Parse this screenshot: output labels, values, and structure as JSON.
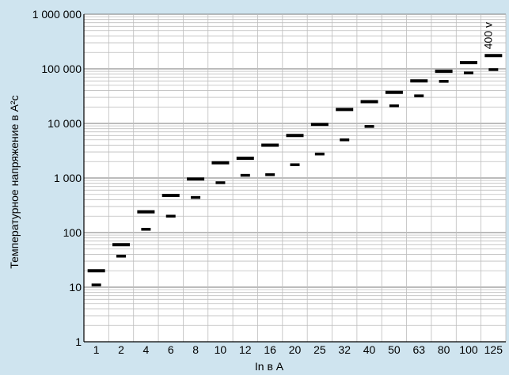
{
  "chart_data": {
    "type": "scatter",
    "title": "",
    "xlabel": "In в A",
    "ylabel": "Температурное напряжение в A²c",
    "y_scale": "log",
    "ylim": [
      1,
      1000000
    ],
    "grid": true,
    "categories": [
      "1",
      "2",
      "4",
      "6",
      "8",
      "10",
      "12",
      "16",
      "20",
      "25",
      "32",
      "40",
      "50",
      "63",
      "80",
      "100",
      "125"
    ],
    "y_tick_labels": [
      "1",
      "10",
      "100",
      "1 000",
      "10 000",
      "100 000",
      "1 000 000"
    ],
    "y_tick_values": [
      1,
      10,
      100,
      1000,
      10000,
      100000,
      1000000
    ],
    "series": [
      {
        "name": "",
        "values": [
          20,
          60,
          240,
          480,
          960,
          1900,
          2300,
          4000,
          6000,
          9600,
          18000,
          25000,
          37000,
          60000,
          90000,
          130000,
          175000
        ]
      },
      {
        "name": "",
        "values": [
          11,
          37,
          115,
          200,
          440,
          820,
          1120,
          1150,
          1750,
          2750,
          5000,
          8800,
          21000,
          32000,
          59000,
          84000,
          97000
        ]
      }
    ],
    "annotations": [
      {
        "text": "400 v",
        "category": "125"
      }
    ]
  }
}
